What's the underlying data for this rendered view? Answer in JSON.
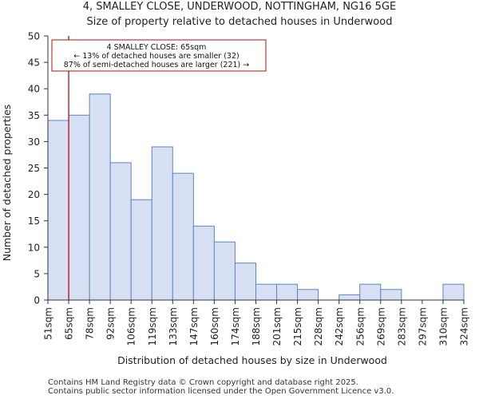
{
  "chart_data": {
    "type": "bar",
    "title": "4, SMALLEY CLOSE, UNDERWOOD, NOTTINGHAM, NG16 5GE",
    "subtitle": "Size of property relative to detached houses in Underwood",
    "xlabel": "Distribution of detached houses by size in Underwood",
    "ylabel": "Number of detached properties",
    "ylim": [
      0,
      50
    ],
    "yticks": [
      0,
      5,
      10,
      15,
      20,
      25,
      30,
      35,
      40,
      45,
      50
    ],
    "tick_labels": [
      "51sqm",
      "65sqm",
      "78sqm",
      "92sqm",
      "106sqm",
      "119sqm",
      "133sqm",
      "147sqm",
      "160sqm",
      "174sqm",
      "188sqm",
      "201sqm",
      "215sqm",
      "228sqm",
      "242sqm",
      "256sqm",
      "269sqm",
      "283sqm",
      "297sqm",
      "310sqm",
      "324sqm"
    ],
    "values": [
      34,
      35,
      39,
      26,
      19,
      29,
      24,
      14,
      11,
      7,
      3,
      3,
      2,
      0,
      1,
      3,
      2,
      0,
      0,
      3
    ],
    "bar_fill": "#d6e0f2",
    "bar_stroke": "#5b86c4",
    "marker": {
      "value_sqm": 65,
      "color": "#aa1111",
      "bin_edge_index": 1,
      "text_lines": [
        "4 SMALLEY CLOSE: 65sqm",
        "← 13% of detached houses are smaller (32)",
        "87% of semi-detached houses are larger (221) →"
      ]
    },
    "grid": false
  },
  "footer": {
    "line1": "Contains HM Land Registry data © Crown copyright and database right 2025.",
    "line2": "Contains public sector information licensed under the Open Government Licence v3.0."
  }
}
